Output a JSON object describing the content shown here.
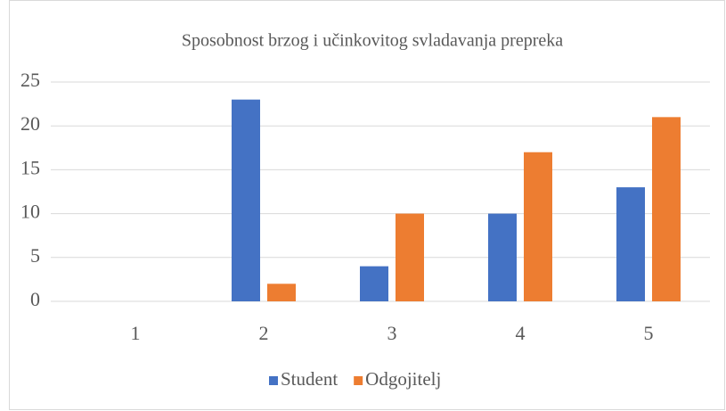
{
  "chart_data": {
    "type": "bar",
    "title": "Sposobnost brzog i učinkovitog svladavanja prepreka",
    "categories": [
      "1",
      "2",
      "3",
      "4",
      "5"
    ],
    "series": [
      {
        "name": "Student",
        "color": "#4472c4",
        "values": [
          0,
          23,
          4,
          10,
          13
        ]
      },
      {
        "name": "Odgojitelj",
        "color": "#ed7d31",
        "values": [
          0,
          2,
          10,
          17,
          21
        ]
      }
    ],
    "ylim": [
      0,
      25
    ],
    "yticks": [
      0,
      5,
      10,
      15,
      20,
      25
    ],
    "grid": true,
    "legend": "bottom"
  }
}
